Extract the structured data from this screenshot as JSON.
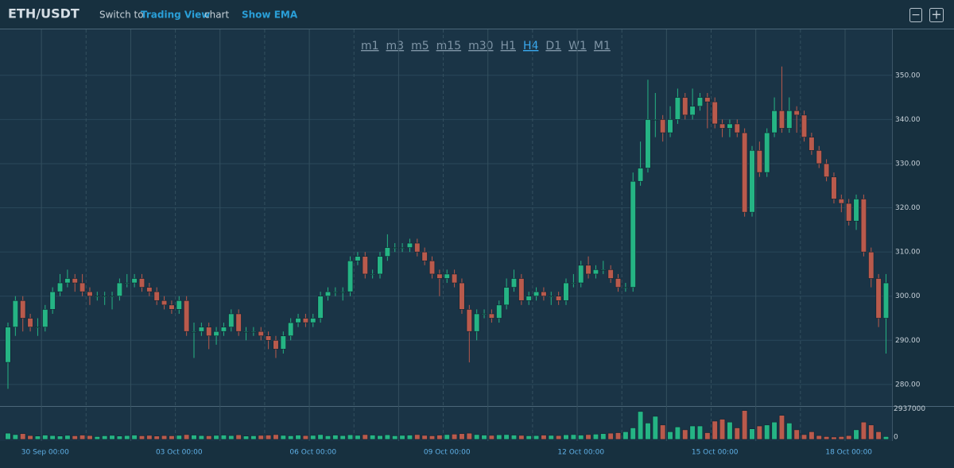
{
  "header": {
    "symbol": "ETH/USDT",
    "switch_prefix": "Switch to",
    "switch_link": "Trading View",
    "switch_suffix": "chart",
    "ema": "Show EMA",
    "zoom_out": "−",
    "zoom_in": "+"
  },
  "timeframes": {
    "items": [
      "m1",
      "m3",
      "m5",
      "m15",
      "m30",
      "H1",
      "H4",
      "D1",
      "W1",
      "M1"
    ],
    "active": "H4"
  },
  "chart_data": {
    "type": "candlestick",
    "up_color": "#25b484",
    "down_color": "#b95a4c",
    "categories": [
      null,
      null,
      null,
      null,
      null,
      "30 Sep 00:00",
      null,
      null,
      null,
      null,
      null,
      null,
      null,
      null,
      null,
      null,
      null,
      null,
      null,
      null,
      null,
      null,
      null,
      "03 Oct 00:00",
      null,
      null,
      null,
      null,
      null,
      null,
      null,
      null,
      null,
      null,
      null,
      null,
      null,
      null,
      null,
      null,
      null,
      "06 Oct 00:00",
      null,
      null,
      null,
      null,
      null,
      null,
      null,
      null,
      null,
      null,
      null,
      null,
      null,
      null,
      null,
      null,
      null,
      "09 Oct 00:00",
      null,
      null,
      null,
      null,
      null,
      null,
      null,
      null,
      null,
      null,
      null,
      null,
      null,
      null,
      null,
      null,
      null,
      "12 Oct 00:00",
      null,
      null,
      null,
      null,
      null,
      null,
      null,
      null,
      null,
      null,
      null,
      null,
      null,
      null,
      null,
      null,
      null,
      "15 Oct 00:00",
      null,
      null,
      null,
      null,
      null,
      null,
      null,
      null,
      null,
      null,
      null,
      null,
      null,
      null,
      null,
      null,
      null,
      "18 Oct 00:00",
      null,
      null,
      null,
      null,
      null
    ],
    "open": [
      285,
      293,
      299,
      295,
      293,
      293,
      297,
      301,
      303,
      304,
      303,
      301,
      300,
      300,
      300,
      300,
      303,
      303,
      304,
      302,
      301,
      299,
      298,
      297,
      299,
      292,
      292,
      293,
      291,
      292,
      293,
      296,
      292,
      292,
      292,
      291,
      290,
      288,
      291,
      294,
      295,
      294,
      295,
      300,
      301,
      301,
      301,
      308,
      309,
      305,
      305,
      309,
      311,
      311,
      311,
      312,
      310,
      308,
      305,
      304,
      305,
      303,
      297,
      292,
      296,
      296,
      295,
      298,
      302,
      304,
      299,
      300,
      301,
      300,
      300,
      299,
      303,
      303,
      307,
      305,
      306,
      306,
      304,
      302,
      302,
      326,
      329,
      340,
      340,
      337,
      340,
      345,
      341,
      343,
      345,
      344,
      339,
      338,
      339,
      337,
      319,
      333,
      328,
      337,
      342,
      338,
      342,
      341,
      336,
      333,
      330,
      327,
      322,
      321,
      317,
      322,
      310,
      304,
      295
    ],
    "high": [
      294,
      300,
      300,
      296,
      295,
      298,
      302,
      305,
      306,
      305,
      305,
      302,
      301,
      301,
      301,
      304,
      305,
      305,
      305,
      303,
      302,
      300,
      299,
      300,
      300,
      294,
      294,
      294,
      293,
      294,
      297,
      297,
      293,
      293,
      293,
      292,
      291,
      292,
      295,
      296,
      296,
      296,
      301,
      302,
      302,
      302,
      309,
      310,
      310,
      306,
      310,
      314,
      312,
      312,
      313,
      313,
      311,
      309,
      306,
      306,
      306,
      304,
      298,
      297,
      297,
      297,
      299,
      304,
      306,
      305,
      301,
      302,
      302,
      301,
      301,
      304,
      305,
      308,
      309,
      307,
      308,
      307,
      305,
      303,
      328,
      335,
      349,
      346,
      341,
      343,
      347,
      346,
      347,
      346,
      346,
      345,
      340,
      340,
      340,
      338,
      334,
      335,
      338,
      345,
      352,
      345,
      343,
      342,
      337,
      334,
      331,
      328,
      323,
      322,
      323,
      323,
      311,
      305,
      305
    ],
    "low": [
      279,
      291,
      292,
      292,
      291,
      292,
      296,
      300,
      302,
      301,
      300,
      298,
      299,
      298,
      297,
      299,
      302,
      302,
      301,
      300,
      298,
      297,
      296,
      296,
      291,
      286,
      291,
      288,
      289,
      291,
      292,
      291,
      290,
      291,
      290,
      288,
      286,
      287,
      290,
      293,
      293,
      293,
      294,
      299,
      300,
      299,
      300,
      307,
      304,
      304,
      304,
      308,
      310,
      310,
      310,
      309,
      307,
      304,
      300,
      303,
      302,
      296,
      285,
      290,
      295,
      294,
      294,
      297,
      301,
      298,
      298,
      299,
      299,
      298,
      298,
      298,
      302,
      302,
      304,
      304,
      305,
      303,
      301,
      301,
      301,
      325,
      328,
      336,
      335,
      336,
      339,
      340,
      340,
      342,
      338,
      338,
      336,
      336,
      336,
      318,
      318,
      327,
      327,
      336,
      337,
      337,
      337,
      335,
      332,
      329,
      326,
      321,
      319,
      316,
      315,
      309,
      302,
      293,
      287
    ],
    "close": [
      293,
      299,
      295,
      293,
      293,
      297,
      301,
      303,
      304,
      303,
      301,
      300,
      300,
      300,
      300,
      303,
      303,
      304,
      302,
      301,
      299,
      298,
      297,
      299,
      292,
      292,
      293,
      291,
      292,
      293,
      296,
      292,
      292,
      292,
      291,
      290,
      288,
      291,
      294,
      295,
      294,
      295,
      300,
      301,
      301,
      301,
      308,
      309,
      305,
      305,
      309,
      311,
      311,
      311,
      312,
      310,
      308,
      305,
      304,
      305,
      303,
      297,
      292,
      296,
      296,
      295,
      298,
      302,
      304,
      299,
      300,
      301,
      300,
      300,
      299,
      303,
      303,
      307,
      305,
      306,
      306,
      304,
      302,
      302,
      326,
      329,
      340,
      340,
      337,
      340,
      345,
      341,
      343,
      345,
      344,
      339,
      338,
      339,
      337,
      319,
      333,
      328,
      337,
      342,
      338,
      342,
      341,
      336,
      333,
      330,
      327,
      322,
      321,
      317,
      322,
      310,
      304,
      295,
      303
    ],
    "ylim": [
      275.3,
      360.4
    ],
    "yticks": [
      {
        "value": 280,
        "label": "280.00"
      },
      {
        "value": 290,
        "label": "290.00"
      },
      {
        "value": 300,
        "label": "300.00"
      },
      {
        "value": 310,
        "label": "310.00"
      },
      {
        "value": 320,
        "label": "320.00"
      },
      {
        "value": 330,
        "label": "330.00"
      },
      {
        "value": 340,
        "label": "340.00"
      },
      {
        "value": 350,
        "label": "350.00"
      }
    ],
    "volume": {
      "values": [
        650000,
        500000,
        600000,
        400000,
        350000,
        450000,
        400000,
        350000,
        420000,
        380000,
        450000,
        400000,
        300000,
        380000,
        420000,
        350000,
        400000,
        450000,
        380000,
        420000,
        350000,
        400000,
        380000,
        420000,
        500000,
        450000,
        400000,
        380000,
        420000,
        450000,
        400000,
        480000,
        350000,
        380000,
        420000,
        450000,
        500000,
        420000,
        380000,
        450000,
        400000,
        420000,
        500000,
        380000,
        450000,
        400000,
        480000,
        420000,
        500000,
        450000,
        400000,
        480000,
        380000,
        420000,
        450000,
        500000,
        420000,
        380000,
        450000,
        500000,
        550000,
        600000,
        650000,
        500000,
        450000,
        420000,
        480000,
        500000,
        450000,
        420000,
        380000,
        400000,
        450000,
        420000,
        400000,
        480000,
        500000,
        450000,
        500000,
        550000,
        600000,
        650000,
        700000,
        800000,
        1200000,
        2900000,
        1700000,
        2400000,
        1500000,
        800000,
        1300000,
        1000000,
        1400000,
        1400000,
        700000,
        1900000,
        2100000,
        1800000,
        1200000,
        3000000,
        1100000,
        1400000,
        1500000,
        1800000,
        2500000,
        1700000,
        1000000,
        500000,
        800000,
        400000,
        300000,
        250000,
        300000,
        400000,
        1000000,
        1800000,
        1500000,
        800000,
        300000
      ],
      "ylim": [
        0,
        3300000
      ],
      "yticks": [
        0,
        2937000
      ]
    }
  }
}
